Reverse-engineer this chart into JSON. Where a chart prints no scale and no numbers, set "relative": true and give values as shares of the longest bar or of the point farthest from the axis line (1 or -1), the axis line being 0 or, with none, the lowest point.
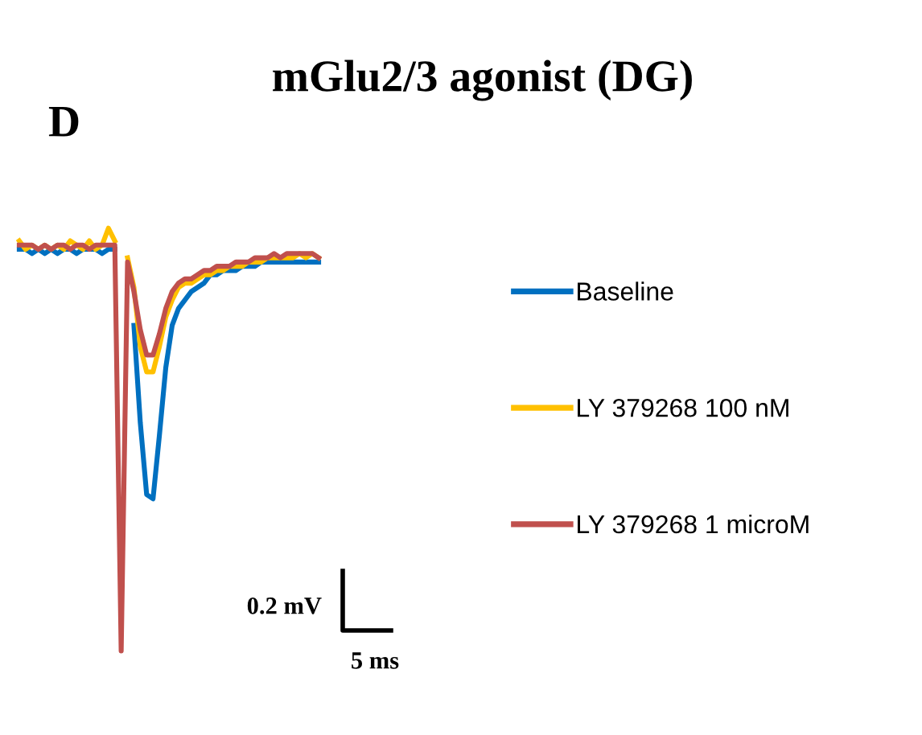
{
  "chart_data": {
    "type": "line",
    "title": "mGlu2/3 agonist (DG)",
    "relative": true,
    "legend": "right",
    "marker": "none",
    "line_style": "solid",
    "annotations": [
      "D",
      "0.2 mV",
      "5 ms"
    ],
    "categories": [
      null,
      null,
      null,
      null,
      null,
      null,
      null,
      null,
      null,
      null,
      null,
      null,
      null,
      null,
      null,
      null,
      null,
      null,
      null,
      null,
      null,
      null,
      null,
      null,
      null,
      null,
      null,
      null,
      null,
      null,
      null,
      null,
      null,
      null,
      null,
      null,
      null,
      null,
      null,
      null,
      null,
      null,
      null,
      null,
      null,
      null,
      null,
      null
    ],
    "series": [
      {
        "name": "Baseline",
        "color": "#0070c0",
        "values": [
          0.95,
          0.95,
          0.94,
          0.95,
          0.94,
          0.95,
          0.94,
          0.95,
          0.95,
          0.94,
          0.95,
          0.95,
          0.95,
          0.94,
          0.95,
          0.95,
          null,
          null,
          0.77,
          0.54,
          0.37,
          0.36,
          0.51,
          0.67,
          0.77,
          0.81,
          0.83,
          0.85,
          0.86,
          0.87,
          0.89,
          0.89,
          0.9,
          0.9,
          0.9,
          0.91,
          0.91,
          0.91,
          0.92,
          0.92,
          0.92,
          0.92,
          0.92,
          0.92,
          0.92,
          0.92,
          0.92,
          0.92
        ]
      },
      {
        "name": "LY 379268 100 nM",
        "color": "#ffc000",
        "values": [
          0.97,
          0.95,
          0.96,
          0.95,
          0.96,
          0.95,
          0.96,
          0.95,
          0.97,
          0.96,
          0.95,
          0.97,
          0.95,
          0.96,
          1,
          0.97,
          null,
          0.93,
          0.86,
          0.72,
          0.66,
          0.66,
          0.72,
          0.79,
          0.83,
          0.86,
          0.87,
          0.87,
          0.88,
          0.89,
          0.89,
          0.9,
          0.9,
          0.91,
          0.91,
          0.91,
          0.92,
          0.92,
          0.92,
          0.93,
          0.93,
          0.93,
          0.93,
          0.93,
          0.94,
          0.93,
          0.94,
          0.93
        ]
      },
      {
        "name": "LY 379268 1 microM",
        "color": "#c0504d",
        "values": [
          0.96,
          0.96,
          0.96,
          0.95,
          0.96,
          0.95,
          0.96,
          0.96,
          0.95,
          0.96,
          0.96,
          0.95,
          0.96,
          0.96,
          0.96,
          0.96,
          0,
          0.92,
          0.85,
          0.76,
          0.7,
          0.7,
          0.75,
          0.81,
          0.85,
          0.87,
          0.88,
          0.88,
          0.89,
          0.9,
          0.9,
          0.91,
          0.91,
          0.91,
          0.92,
          0.92,
          0.92,
          0.93,
          0.93,
          0.93,
          0.94,
          0.93,
          0.94,
          0.94,
          0.94,
          0.94,
          0.94,
          0.93
        ]
      }
    ]
  }
}
